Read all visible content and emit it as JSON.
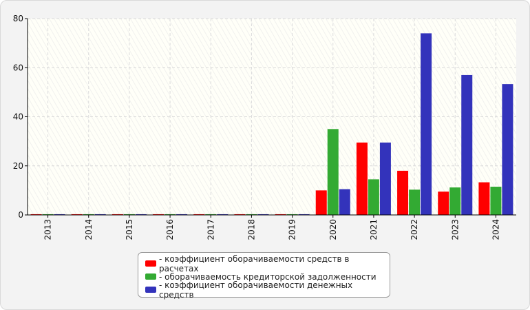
{
  "chart_data": {
    "type": "bar",
    "categories": [
      "2013",
      "2014",
      "2015",
      "2016",
      "2017",
      "2018",
      "2019",
      "2020",
      "2021",
      "2022",
      "2023",
      "2024"
    ],
    "series": [
      {
        "name": "- коэффициент оборачиваемости средств в расчетах",
        "color": "#ff0000",
        "values": [
          0.3,
          0.3,
          0.3,
          0.3,
          0.3,
          0.3,
          0.3,
          10.0,
          29.5,
          18.0,
          9.5,
          13.3
        ]
      },
      {
        "name": "- оборачиваемость кредиторской задолженности",
        "color": "#33aa33",
        "values": [
          0.3,
          0.3,
          0.3,
          0.3,
          0.3,
          0.3,
          0.3,
          35.0,
          14.5,
          10.3,
          11.2,
          11.5
        ]
      },
      {
        "name": "- коэффициент оборачиваемости денежных средств",
        "color": "#3333bb",
        "values": [
          0.3,
          0.3,
          0.3,
          0.3,
          0.3,
          0.3,
          0.3,
          10.5,
          29.5,
          74.0,
          57.0,
          53.3
        ]
      }
    ],
    "ylim": [
      0,
      80
    ],
    "yticks": [
      0,
      20,
      40,
      60,
      80
    ],
    "grid": true,
    "legend_position": "bottom"
  }
}
